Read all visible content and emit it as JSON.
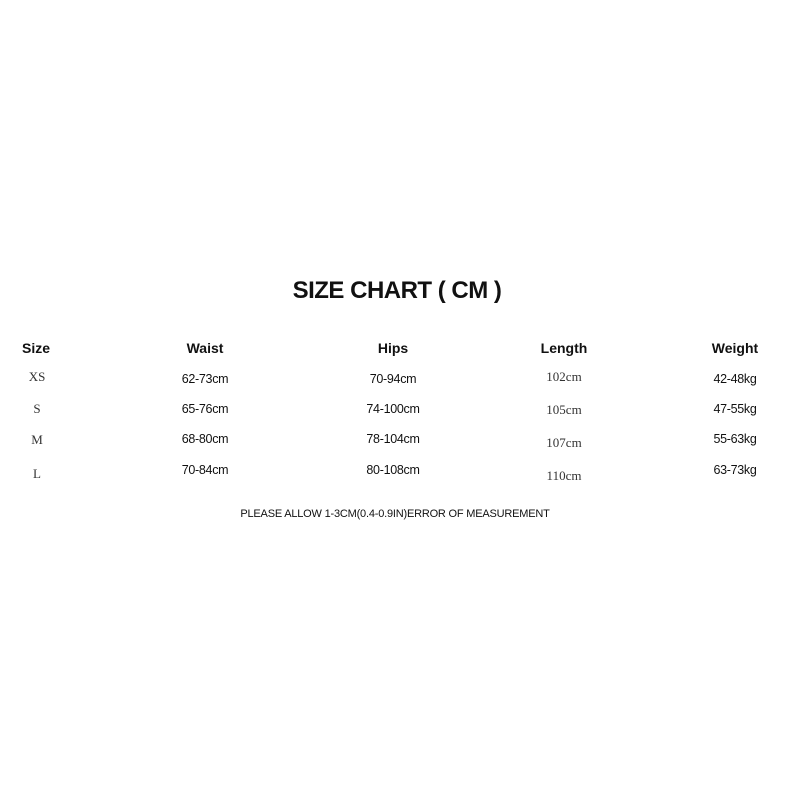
{
  "title": "SIZE CHART ( CM )",
  "headers": [
    "Size",
    "Waist",
    "Hips",
    "Length",
    "Weight"
  ],
  "rows": [
    [
      "XS",
      "62-73cm",
      "70-94cm",
      "102cm",
      "42-48kg"
    ],
    [
      "S",
      "65-76cm",
      "74-100cm",
      "105cm",
      "47-55kg"
    ],
    [
      "M",
      "68-80cm",
      "78-104cm",
      "107cm",
      "55-63kg"
    ],
    [
      "L",
      "70-84cm",
      "80-108cm",
      "110cm",
      "63-73kg"
    ]
  ],
  "note": "PLEASE ALLOW 1-3CM(0.4-0.9IN)ERROR OF MEASUREMENT"
}
